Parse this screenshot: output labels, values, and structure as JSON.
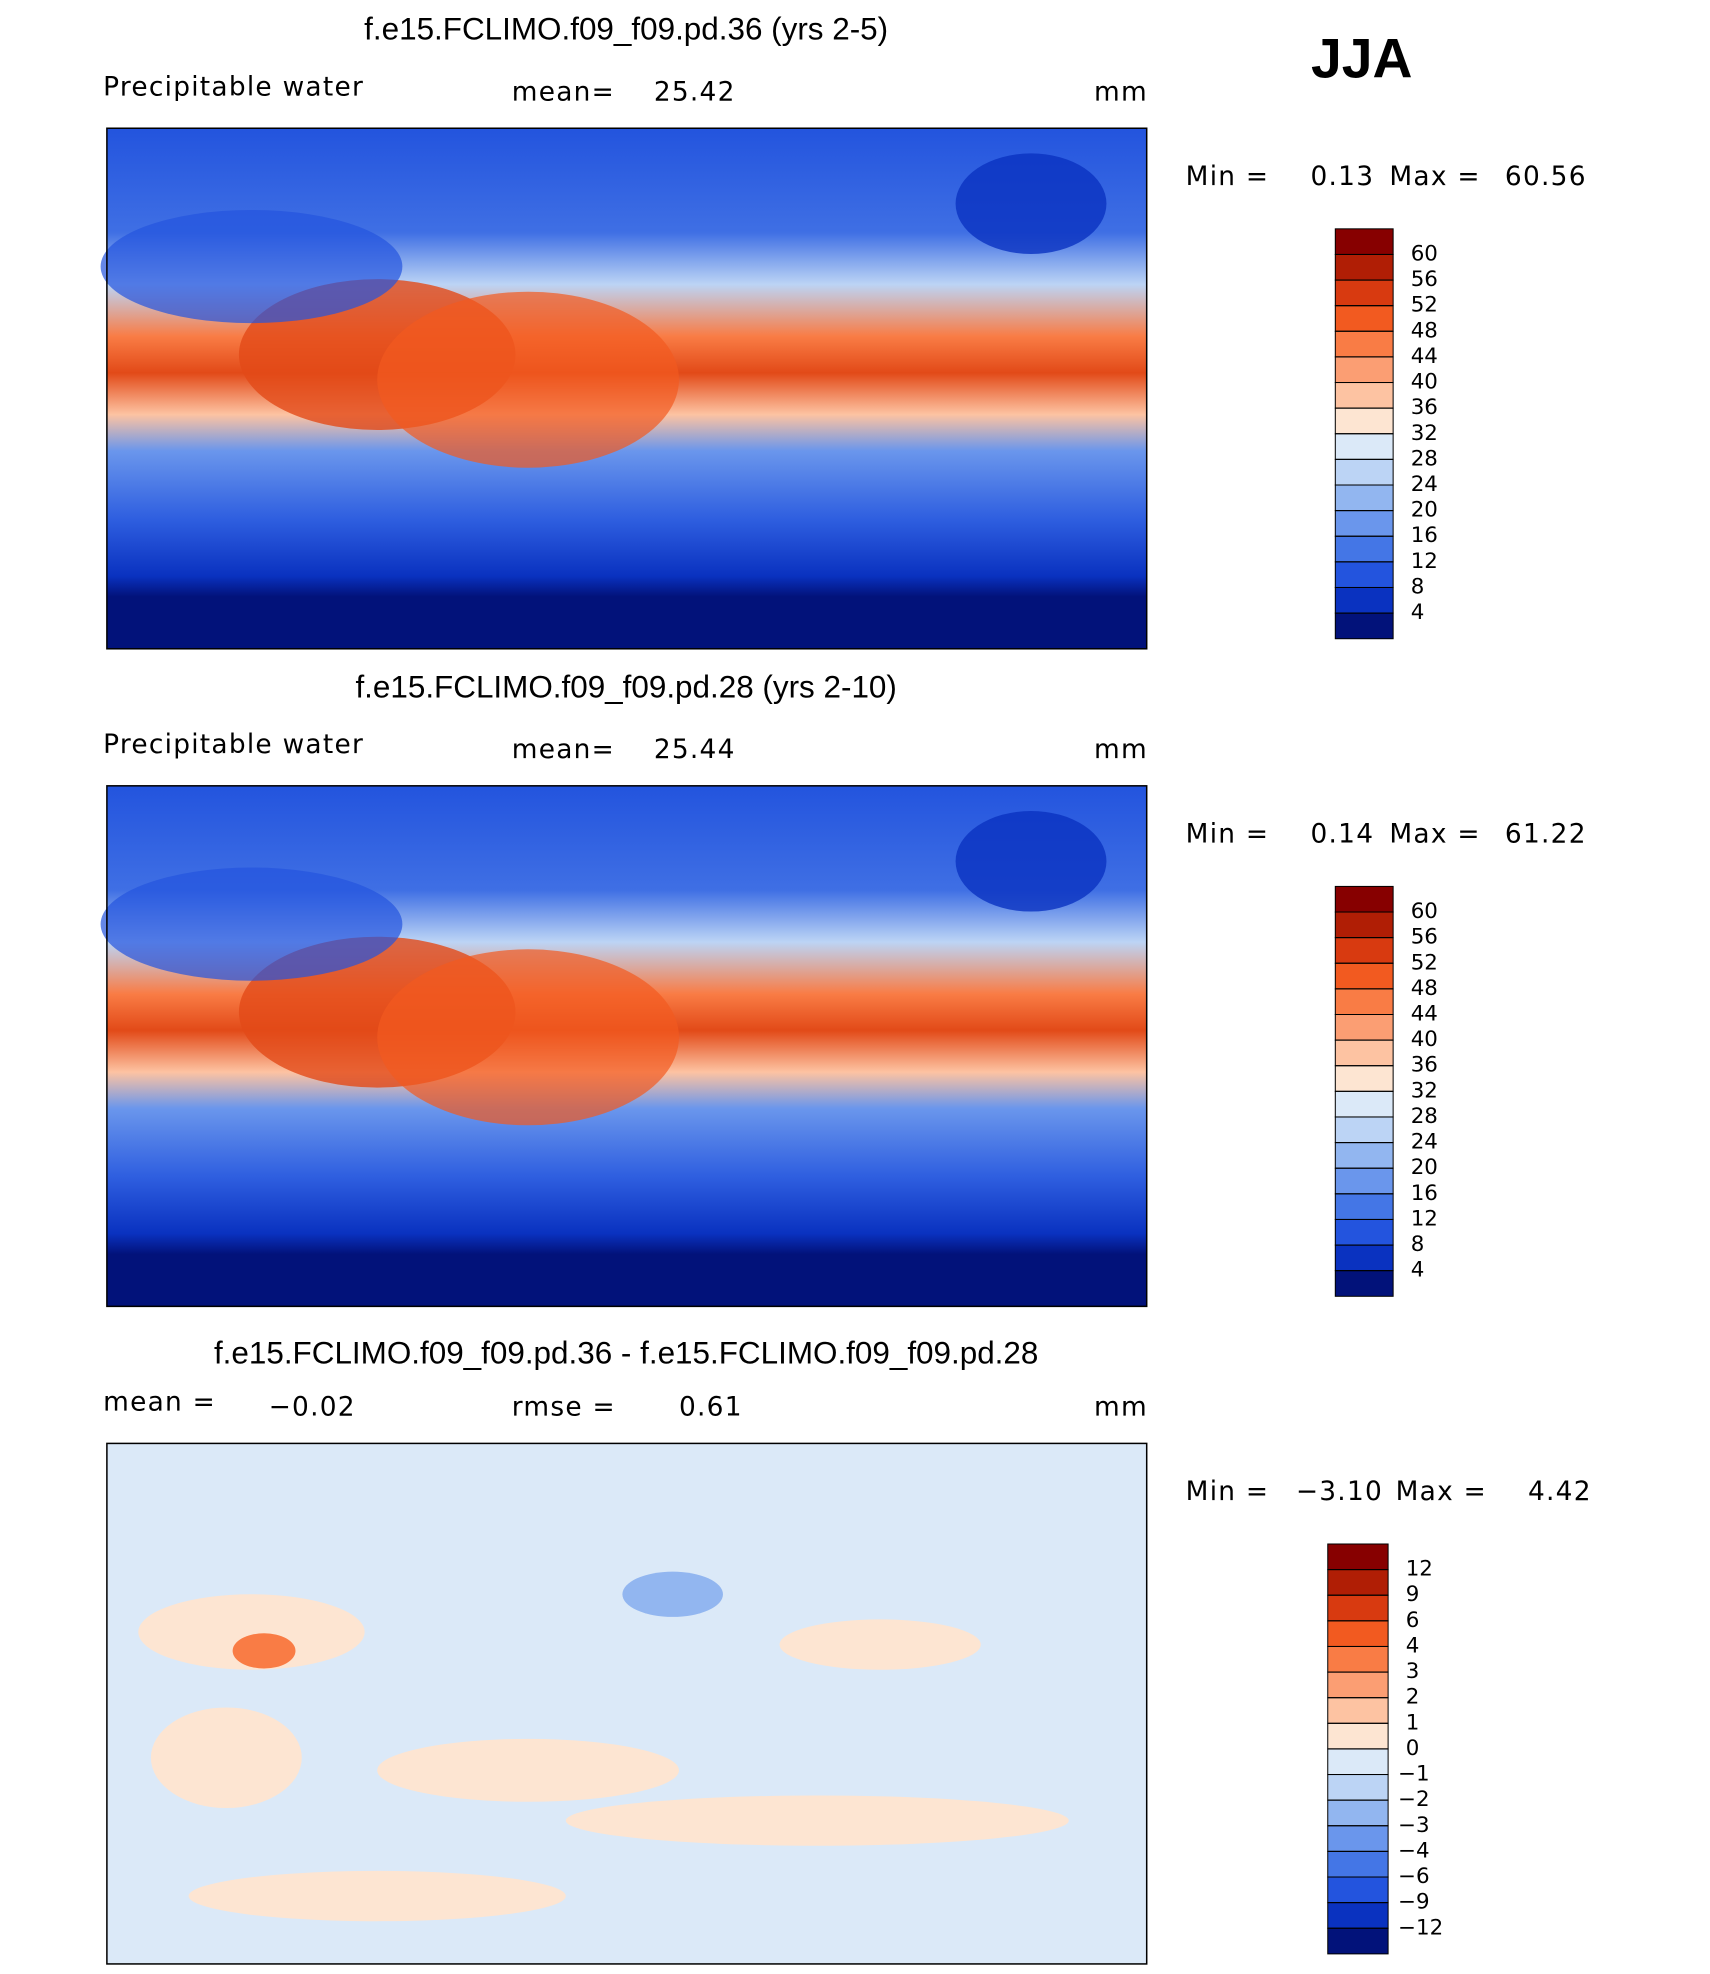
{
  "header": {
    "season": "JJA"
  },
  "panels": [
    {
      "title": "f.e15.FCLIMO.f09_f09.pd.36 (yrs 2-5)",
      "left_label": "Precipitable  water",
      "stat_label": "mean=",
      "stat_value": 25.42,
      "units": "mm",
      "min_label": "Min =",
      "min_value": 0.13,
      "max_label": "Max =",
      "max_value": 60.56,
      "colorbar": {
        "levels": [
          60,
          56,
          52,
          48,
          44,
          40,
          36,
          32,
          28,
          24,
          20,
          16,
          12,
          8,
          4
        ],
        "colors": [
          "#870000",
          "#b01e05",
          "#d83a10",
          "#f25a20",
          "#f97c45",
          "#fb9e73",
          "#fdc3a2",
          "#fde5d2",
          "#dbe9f8",
          "#bcd4f5",
          "#92b6f0",
          "#6a96ec",
          "#4476e6",
          "#2354de",
          "#0a32c0",
          "#02127a"
        ]
      }
    },
    {
      "title": "f.e15.FCLIMO.f09_f09.pd.28 (yrs 2-10)",
      "left_label": "Precipitable  water",
      "stat_label": "mean=",
      "stat_value": 25.44,
      "units": "mm",
      "min_label": "Min =",
      "min_value": 0.14,
      "max_label": "Max =",
      "max_value": 61.22,
      "colorbar": {
        "levels": [
          60,
          56,
          52,
          48,
          44,
          40,
          36,
          32,
          28,
          24,
          20,
          16,
          12,
          8,
          4
        ],
        "colors": [
          "#870000",
          "#b01e05",
          "#d83a10",
          "#f25a20",
          "#f97c45",
          "#fb9e73",
          "#fdc3a2",
          "#fde5d2",
          "#dbe9f8",
          "#bcd4f5",
          "#92b6f0",
          "#6a96ec",
          "#4476e6",
          "#2354de",
          "#0a32c0",
          "#02127a"
        ]
      }
    },
    {
      "title": "f.e15.FCLIMO.f09_f09.pd.36 - f.e15.FCLIMO.f09_f09.pd.28",
      "left_label": "mean =",
      "left_value": {
        "value": -0.02,
        "label": "−0.02"
      },
      "stat_label": "rmse =",
      "stat_value": 0.61,
      "units": "mm",
      "min_label": "Min =",
      "min_value": {
        "value": -3.1,
        "label": "−3.10"
      },
      "max_label": "Max =",
      "max_value": 4.42,
      "colorbar": {
        "levels": [
          12,
          9,
          6,
          4,
          3,
          2,
          1,
          0,
          {
            "value": -1,
            "label": "−1"
          },
          {
            "value": -2,
            "label": "−2"
          },
          {
            "value": -3,
            "label": "−3"
          },
          {
            "value": -4,
            "label": "−4"
          },
          {
            "value": -6,
            "label": "−6"
          },
          {
            "value": -9,
            "label": "−9"
          },
          {
            "value": -12,
            "label": "−12"
          }
        ],
        "colors": [
          "#870000",
          "#b01e05",
          "#d83a10",
          "#f25a20",
          "#f97c45",
          "#fb9e73",
          "#fdc3a2",
          "#fde5d2",
          "#dbe9f8",
          "#bcd4f5",
          "#92b6f0",
          "#6a96ec",
          "#4476e6",
          "#2354de",
          "#0a32c0",
          "#02127a"
        ]
      }
    }
  ]
}
